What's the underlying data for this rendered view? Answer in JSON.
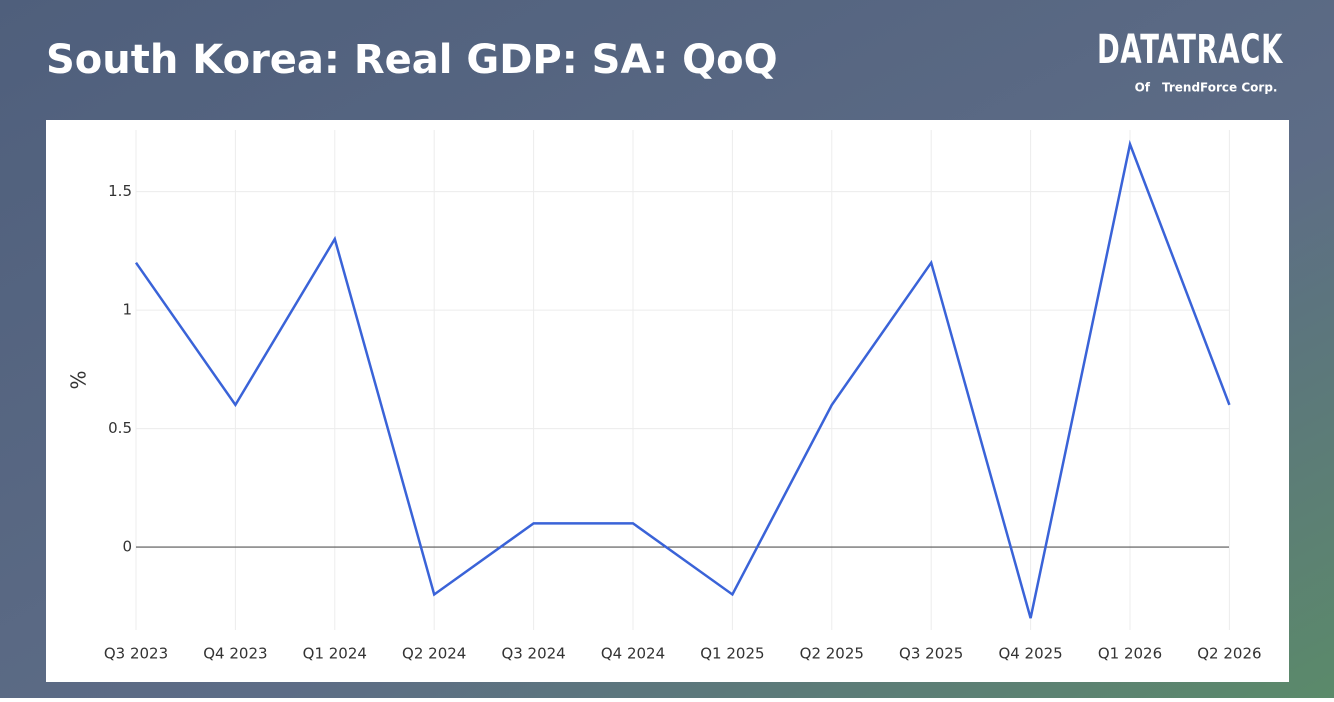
{
  "chart_data": {
    "type": "line",
    "title": "South Korea: Real GDP: SA: QoQ",
    "y_label": "%",
    "categories": [
      "Q3 2023",
      "Q4 2023",
      "Q1 2024",
      "Q2 2024",
      "Q3 2024",
      "Q4 2024",
      "Q1 2025",
      "Q2 2025",
      "Q3 2025",
      "Q4 2025",
      "Q1 2026",
      "Q2 2026"
    ],
    "series": [
      {
        "name": "Real GDP: SA: QoQ",
        "color": "#3a63d8",
        "values": [
          1.2,
          0.6,
          1.3,
          -0.2,
          0.1,
          0.1,
          -0.2,
          0.6,
          1.2,
          -0.3,
          1.7,
          0.6
        ]
      }
    ],
    "ylim": [
      -0.35,
      1.76
    ],
    "yticks": [
      0,
      0.5,
      1,
      1.5
    ],
    "grid": true
  },
  "logo": {
    "brand": "DATATRACK",
    "of": "Of",
    "company": "TrendForce Corp."
  }
}
